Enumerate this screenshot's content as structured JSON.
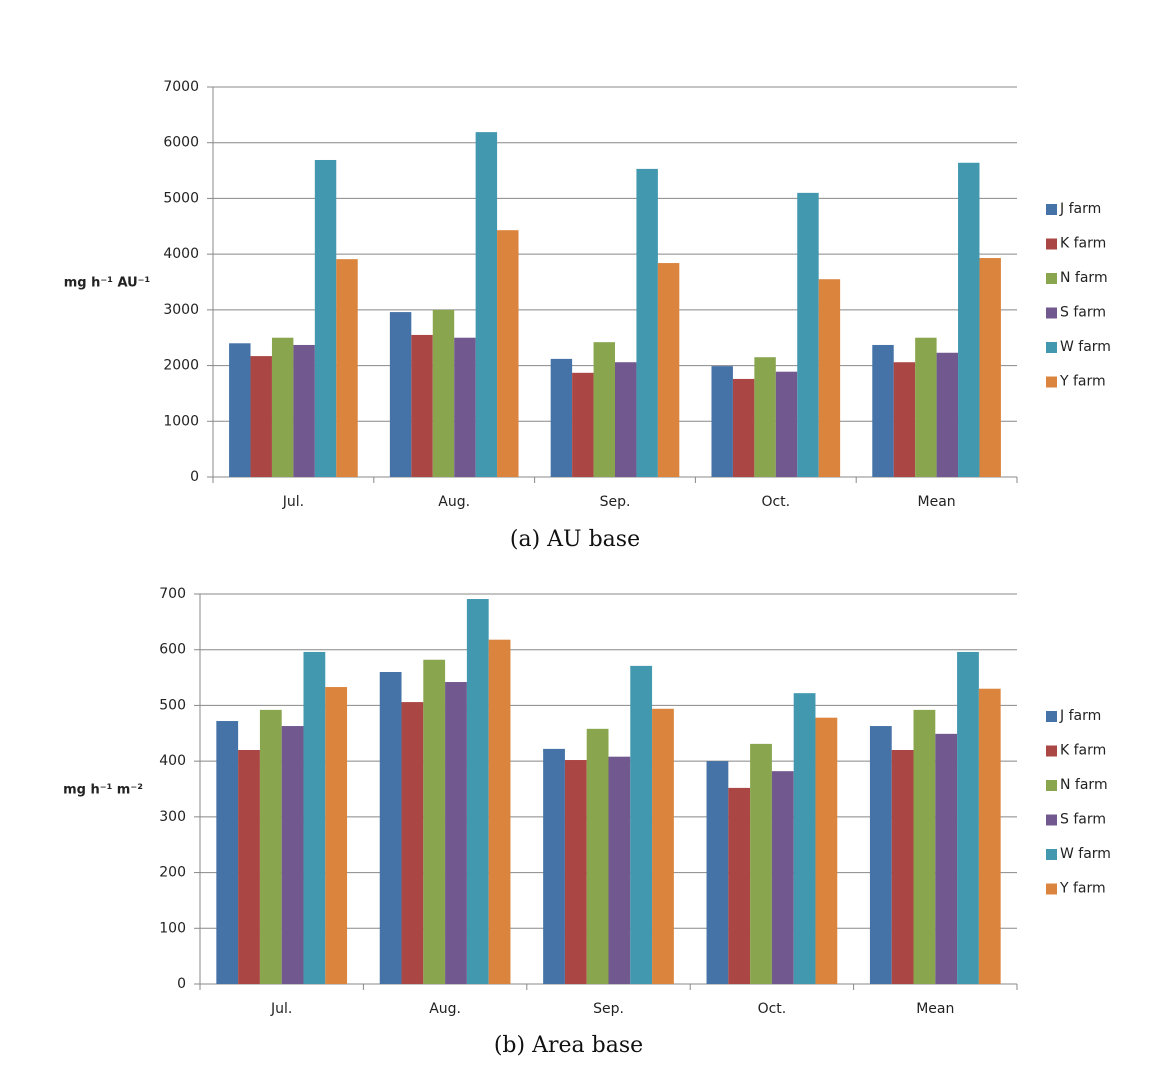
{
  "chart_data": [
    {
      "type": "bar",
      "caption": "(a)  AU  base",
      "y_label": "mg h⁻¹ AU⁻¹",
      "categories": [
        "Jul.",
        "Aug.",
        "Sep.",
        "Oct.",
        "Mean"
      ],
      "series": [
        {
          "name": "J farm",
          "color": "#4572a7",
          "values": [
            2400,
            2960,
            2120,
            1990,
            2370
          ]
        },
        {
          "name": "K farm",
          "color": "#aa4643",
          "values": [
            2170,
            2550,
            1870,
            1760,
            2060
          ]
        },
        {
          "name": "N farm",
          "color": "#89a54e",
          "values": [
            2500,
            3000,
            2420,
            2150,
            2500
          ]
        },
        {
          "name": "S farm",
          "color": "#71588f",
          "values": [
            2370,
            2500,
            2060,
            1890,
            2230
          ]
        },
        {
          "name": "W farm",
          "color": "#4198af",
          "values": [
            5690,
            6190,
            5530,
            5100,
            5640
          ]
        },
        {
          "name": "Y farm",
          "color": "#db843d",
          "values": [
            3910,
            4430,
            3840,
            3550,
            3930
          ]
        }
      ],
      "ylim": [
        0,
        7000
      ],
      "yticks": [
        0,
        1000,
        2000,
        3000,
        4000,
        5000,
        6000,
        7000
      ],
      "grid": true,
      "legend": "right"
    },
    {
      "type": "bar",
      "caption": "(b)  Area  base",
      "y_label": "mg h⁻¹ m⁻²",
      "categories": [
        "Jul.",
        "Aug.",
        "Sep.",
        "Oct.",
        "Mean"
      ],
      "series": [
        {
          "name": "J farm",
          "color": "#4572a7",
          "values": [
            472,
            560,
            422,
            400,
            463
          ]
        },
        {
          "name": "K farm",
          "color": "#aa4643",
          "values": [
            420,
            506,
            402,
            352,
            420
          ]
        },
        {
          "name": "N farm",
          "color": "#89a54e",
          "values": [
            492,
            582,
            458,
            431,
            492
          ]
        },
        {
          "name": "S farm",
          "color": "#71588f",
          "values": [
            463,
            542,
            408,
            382,
            449
          ]
        },
        {
          "name": "W farm",
          "color": "#4198af",
          "values": [
            596,
            691,
            571,
            522,
            596
          ]
        },
        {
          "name": "Y farm",
          "color": "#db843d",
          "values": [
            533,
            618,
            494,
            478,
            530
          ]
        }
      ],
      "ylim": [
        0,
        700
      ],
      "yticks": [
        0,
        100,
        200,
        300,
        400,
        500,
        600,
        700
      ],
      "grid": true,
      "legend": "right"
    }
  ]
}
